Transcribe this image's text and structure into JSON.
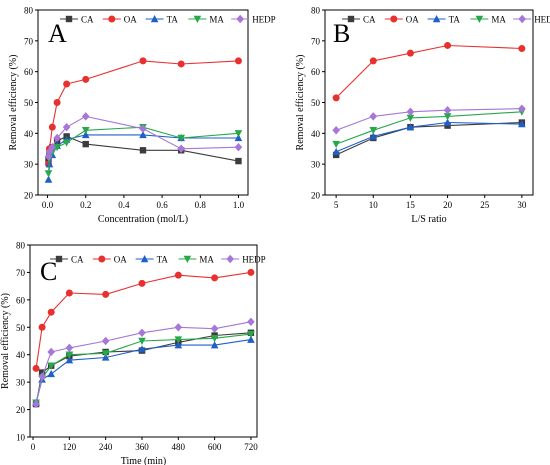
{
  "chart_data": [
    {
      "type": "line",
      "panel_label": "A",
      "xlabel": "Concentration (mol/L)",
      "ylabel": "Removal efficiency (%)",
      "xlim": [
        -0.05,
        1.05
      ],
      "ylim": [
        20,
        80
      ],
      "xticks": [
        0.0,
        0.2,
        0.4,
        0.6,
        0.8,
        1.0
      ],
      "yticks": [
        20,
        30,
        40,
        50,
        60,
        70,
        80
      ],
      "xtick_labels": [
        "0.0",
        "0.2",
        "0.4",
        "0.6",
        "0.8",
        "1.0"
      ],
      "legend_position": "top",
      "series": [
        {
          "name": "CA",
          "x": [
            0.005,
            0.01,
            0.025,
            0.05,
            0.1,
            0.2,
            0.5,
            0.7,
            1.0
          ],
          "values": [
            31.5,
            33.5,
            35.5,
            37.5,
            39,
            36.5,
            34.5,
            34.5,
            31
          ]
        },
        {
          "name": "OA",
          "x": [
            0.005,
            0.01,
            0.025,
            0.05,
            0.1,
            0.2,
            0.5,
            0.7,
            1.0
          ],
          "values": [
            30,
            35,
            42,
            50,
            56,
            57.5,
            63.5,
            62.5,
            63.5
          ]
        },
        {
          "name": "TA",
          "x": [
            0.005,
            0.01,
            0.025,
            0.05,
            0.1,
            0.2,
            0.5,
            0.7,
            1.0
          ],
          "values": [
            25,
            30,
            33,
            36,
            38,
            39.5,
            39.5,
            38.5,
            38.5
          ]
        },
        {
          "name": "MA",
          "x": [
            0.005,
            0.01,
            0.025,
            0.05,
            0.1,
            0.2,
            0.5,
            0.7,
            1.0
          ],
          "values": [
            27,
            32,
            34,
            35.5,
            37,
            41,
            42,
            38.5,
            40
          ]
        },
        {
          "name": "HEDP",
          "x": [
            0.005,
            0.01,
            0.025,
            0.05,
            0.1,
            0.2,
            0.5,
            0.7,
            1.0
          ],
          "values": [
            32.5,
            34,
            35.5,
            38.5,
            42,
            45.5,
            41.5,
            35,
            35.5
          ]
        }
      ]
    },
    {
      "type": "line",
      "panel_label": "B",
      "xlabel": "L/S ratio",
      "ylabel": "Removal efficiency (%)",
      "xlim": [
        3.5,
        31.5
      ],
      "ylim": [
        20,
        80
      ],
      "xticks": [
        5,
        10,
        15,
        20,
        25,
        30
      ],
      "yticks": [
        20,
        30,
        40,
        50,
        60,
        70,
        80
      ],
      "xtick_labels": [
        "5",
        "10",
        "15",
        "20",
        "25",
        "30"
      ],
      "legend_position": "top",
      "series": [
        {
          "name": "CA",
          "x": [
            5,
            10,
            15,
            20,
            30
          ],
          "values": [
            33,
            38.5,
            42,
            42.5,
            43.5
          ]
        },
        {
          "name": "OA",
          "x": [
            5,
            10,
            15,
            20,
            30
          ],
          "values": [
            51.5,
            63.5,
            66,
            68.5,
            67.5
          ]
        },
        {
          "name": "TA",
          "x": [
            5,
            10,
            15,
            20,
            30
          ],
          "values": [
            34,
            39,
            42,
            43.5,
            43
          ]
        },
        {
          "name": "MA",
          "x": [
            5,
            10,
            15,
            20,
            30
          ],
          "values": [
            36.5,
            41,
            45,
            45.5,
            47
          ]
        },
        {
          "name": "HEDP",
          "x": [
            5,
            10,
            15,
            20,
            30
          ],
          "values": [
            41,
            45.5,
            47,
            47.5,
            48
          ]
        }
      ]
    },
    {
      "type": "line",
      "panel_label": "C",
      "xlabel": "Time (min)",
      "ylabel": "Removal efficiency (%)",
      "xlim": [
        -10,
        740
      ],
      "ylim": [
        10,
        80
      ],
      "xticks": [
        0,
        120,
        240,
        360,
        480,
        600,
        720
      ],
      "yticks": [
        10,
        20,
        30,
        40,
        50,
        60,
        70,
        80
      ],
      "xtick_labels": [
        "0",
        "120",
        "240",
        "360",
        "480",
        "600",
        "720"
      ],
      "legend_position": "top",
      "series": [
        {
          "name": "CA",
          "x": [
            10,
            30,
            60,
            120,
            240,
            360,
            480,
            600,
            720
          ],
          "values": [
            22,
            33.5,
            36,
            39.5,
            41,
            41.5,
            44.5,
            47,
            48
          ]
        },
        {
          "name": "OA",
          "x": [
            10,
            30,
            60,
            120,
            240,
            360,
            480,
            600,
            720
          ],
          "values": [
            35,
            50,
            55.5,
            62.5,
            62,
            66,
            69,
            68,
            70
          ]
        },
        {
          "name": "TA",
          "x": [
            10,
            30,
            60,
            120,
            240,
            360,
            480,
            600,
            720
          ],
          "values": [
            22.5,
            31,
            33,
            38,
            39,
            42,
            43.5,
            43.5,
            45.5
          ]
        },
        {
          "name": "MA",
          "x": [
            10,
            30,
            60,
            120,
            240,
            360,
            480,
            600,
            720
          ],
          "values": [
            22.5,
            31.5,
            36,
            40,
            40.5,
            45,
            45.5,
            46,
            47.5
          ]
        },
        {
          "name": "HEDP",
          "x": [
            10,
            30,
            60,
            120,
            240,
            360,
            480,
            600,
            720
          ],
          "values": [
            22,
            32,
            41,
            42.5,
            45,
            48,
            50,
            49.5,
            52
          ]
        }
      ]
    }
  ],
  "colors": {
    "CA": "#3c3c3c",
    "OA": "#e8312f",
    "TA": "#1f5fc8",
    "MA": "#27a84a",
    "HEDP": "#a676d9"
  },
  "markers": {
    "CA": "square",
    "OA": "circle",
    "TA": "triangle-up",
    "MA": "triangle-down",
    "HEDP": "diamond"
  }
}
